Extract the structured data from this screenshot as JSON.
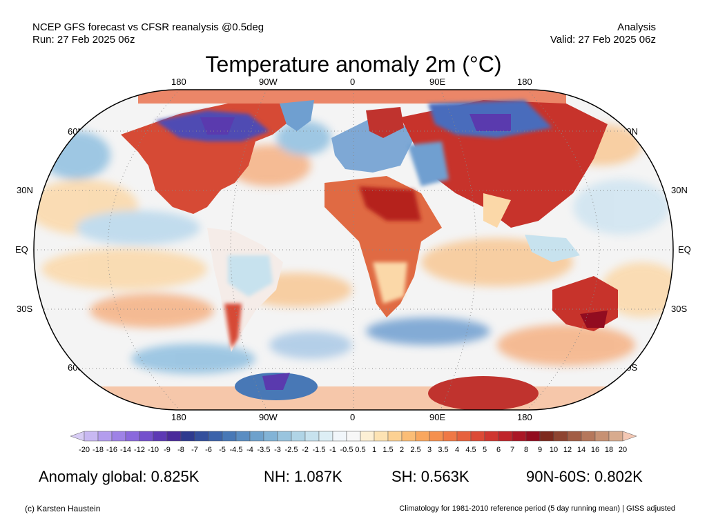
{
  "header": {
    "left_line1": "NCEP GFS forecast vs CFSR reanalysis @0.5deg",
    "left_line2": "Run: 27 Feb 2025 06z",
    "right_line1": "Analysis",
    "right_line2": "Valid: 27 Feb 2025 06z"
  },
  "title": "Temperature anomaly 2m (°C)",
  "map": {
    "projection": "Robinson",
    "central_longitude": 0,
    "lon_labels": [
      "180",
      "90W",
      "0",
      "90E",
      "180"
    ],
    "lat_labels": [
      "60N",
      "30N",
      "EQ",
      "30S",
      "60S"
    ],
    "graticule": "dotted",
    "ocean_background": "#f4f4f4",
    "coast_color": "#000000"
  },
  "colorbar": {
    "ticks": [
      "-20",
      "-18",
      "-16",
      "-14",
      "-12",
      "-10",
      "-9",
      "-8",
      "-7",
      "-6",
      "-5",
      "-4.5",
      "-4",
      "-3.5",
      "-3",
      "-2.5",
      "-2",
      "-1.5",
      "-1",
      "-0.5",
      "0.5",
      "1",
      "1.5",
      "2",
      "2.5",
      "3",
      "3.5",
      "4",
      "4.5",
      "5",
      "6",
      "7",
      "8",
      "9",
      "10",
      "12",
      "14",
      "16",
      "18",
      "20"
    ],
    "low_extend_color": "#d8cdf5",
    "high_extend_color": "#f4c8b4",
    "colors": [
      "#c8b8f2",
      "#b39ded",
      "#9e82e6",
      "#8a68dc",
      "#7450cc",
      "#5d39b4",
      "#4a2a9a",
      "#2e3a8e",
      "#334f9c",
      "#3c63aa",
      "#4878b6",
      "#5a8dc2",
      "#6ea1cc",
      "#82b3d6",
      "#99c4de",
      "#b0d4e6",
      "#c7e2ee",
      "#ddeef5",
      "#f1f6fa",
      "#f7f7f7",
      "#fdf0d5",
      "#fde3b3",
      "#fcd193",
      "#fbbd76",
      "#f9a75f",
      "#f5904f",
      "#ef7845",
      "#e6613d",
      "#dc4a36",
      "#cf3630",
      "#bf242a",
      "#aa1626",
      "#920c20",
      "#7d2a1e",
      "#8e4431",
      "#a25d45",
      "#b5775b",
      "#c79173",
      "#d8ab8e"
    ]
  },
  "stats": {
    "global": "Anomaly global: 0.825K",
    "nh": "NH: 1.087K",
    "sh": "SH: 0.563K",
    "arctic": "90N-60S: 0.802K"
  },
  "footer": {
    "left": "(c) Karsten Haustein",
    "right": "Climatology for 1981-2010 reference period (5 day running mean) | GISS adjusted"
  }
}
